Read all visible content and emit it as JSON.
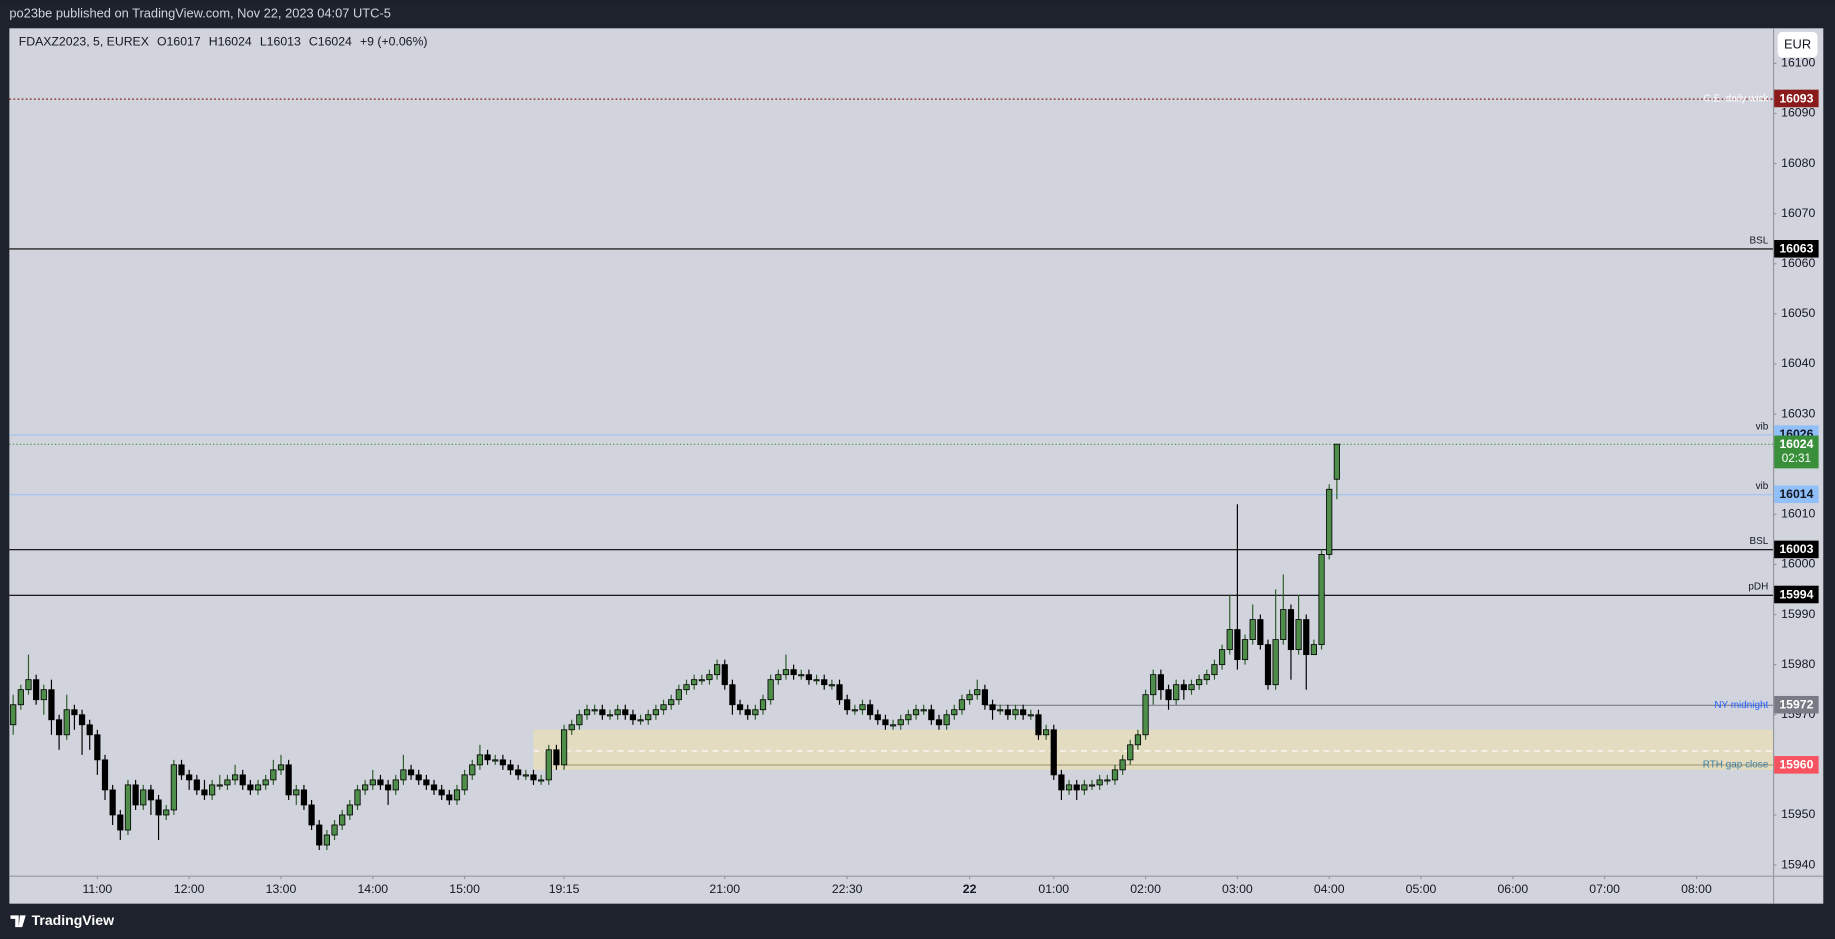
{
  "header": {
    "publisher": "po23be published on TradingView.com, Nov 22, 2023 04:07 UTC-5",
    "currency": "EUR"
  },
  "footer": {
    "brand": "TradingView"
  },
  "chart_data": {
    "type": "candlestick",
    "legend": {
      "symbol": "FDAXZ2023, 5, EUREX",
      "open": "O16017",
      "high": "H16024",
      "low": "L16013",
      "close": "C16024",
      "change": "+9 (+0.06%)"
    },
    "x": [
      0,
      1,
      2,
      3,
      4,
      5,
      6,
      7,
      8,
      9,
      10,
      11,
      12,
      13,
      14,
      15,
      16,
      17,
      18,
      19,
      20,
      21,
      22,
      23,
      24,
      25,
      26,
      27,
      28,
      29,
      30,
      31,
      32,
      33,
      34,
      35,
      36,
      37,
      38,
      39,
      40,
      41,
      42,
      43,
      44,
      45,
      46,
      47,
      48,
      49,
      50,
      51,
      52,
      53,
      54,
      55,
      56,
      57,
      58,
      59,
      60,
      61,
      62,
      63,
      64,
      65,
      66,
      67,
      68,
      69,
      70,
      71,
      72,
      73,
      74,
      75,
      76,
      77,
      78,
      79,
      80,
      81,
      82,
      83,
      84,
      85,
      86,
      87,
      88,
      89,
      90,
      91,
      92,
      93,
      94,
      95,
      96,
      97,
      98,
      99,
      100,
      101,
      102,
      103,
      104,
      105,
      106,
      107,
      108,
      109,
      110,
      111,
      112,
      113,
      114,
      115,
      116,
      117,
      118,
      119,
      120,
      121,
      122,
      123,
      124,
      125,
      126,
      127,
      128,
      129,
      130,
      131,
      132,
      133,
      134,
      135,
      136,
      137,
      138,
      139,
      140,
      141,
      142,
      143,
      144,
      145,
      146,
      147,
      148,
      149,
      150,
      151,
      152,
      153,
      154,
      155,
      156,
      157,
      158,
      159,
      160,
      161,
      162,
      163,
      164,
      165,
      166,
      167,
      168,
      169,
      170,
      171,
      172,
      173
    ],
    "open": [
      15968,
      15972,
      15975,
      15977,
      15973,
      15975,
      15969,
      15966,
      15971,
      15970,
      15968,
      15966,
      15961,
      15955,
      15950,
      15947,
      15956,
      15952,
      15955,
      15953,
      15950,
      15951,
      15960,
      15958,
      15957,
      15955,
      15954,
      15956,
      15956,
      15957,
      15958,
      15956,
      15955,
      15956,
      15957,
      15959,
      15960,
      15954,
      15955,
      15952,
      15948,
      15944,
      15946,
      15948,
      15950,
      15952,
      15955,
      15956,
      15957,
      15956,
      15955,
      15957,
      15959,
      15958,
      15957,
      15956,
      15955,
      15954,
      15953,
      15955,
      15958,
      15960,
      15962,
      15961,
      15961,
      15960,
      15959,
      15958,
      15958,
      15957,
      15957,
      15963,
      15960,
      15967,
      15968,
      15970,
      15971,
      15971,
      15970,
      15970,
      15971,
      15970,
      15969,
      15969,
      15970,
      15971,
      15972,
      15973,
      15975,
      15976,
      15977,
      15977,
      15978,
      15980,
      15976,
      15972,
      15971,
      15970,
      15971,
      15973,
      15977,
      15978,
      15979,
      15978,
      15978,
      15977,
      15977,
      15976,
      15976,
      15973,
      15971,
      15971,
      15972,
      15970,
      15969,
      15968,
      15968,
      15969,
      15970,
      15971,
      15971,
      15969,
      15968,
      15970,
      15971,
      15973,
      15974,
      15975,
      15972,
      15971,
      15971,
      15970,
      15971,
      15970,
      15970,
      15966,
      15967,
      15958,
      15955,
      15956,
      15955,
      15956,
      15956,
      15957,
      15957,
      15959,
      15961,
      15964,
      15966,
      15974,
      15978,
      15975,
      15973,
      15976,
      15975,
      15976,
      15977,
      15978,
      15980,
      15983,
      15987,
      15981,
      15985,
      15989,
      15984,
      15976,
      15985,
      15991,
      15983,
      15989,
      15982,
      15984,
      16002,
      16017
    ],
    "high": [
      15974,
      15976,
      15982,
      15978,
      15976,
      15977,
      15970,
      15974,
      15972,
      15971,
      15969,
      15967,
      15962,
      15956,
      15951,
      15957,
      15957,
      15956,
      15956,
      15954,
      15952,
      15961,
      15961,
      15959,
      15958,
      15957,
      15957,
      15958,
      15958,
      15960,
      15959,
      15957,
      15957,
      15958,
      15961,
      15962,
      15961,
      15956,
      15956,
      15953,
      15949,
      15947,
      15949,
      15951,
      15953,
      15956,
      15957,
      15959,
      15958,
      15957,
      15958,
      15962,
      15960,
      15959,
      15958,
      15957,
      15956,
      15955,
      15956,
      15959,
      15961,
      15964,
      15963,
      15962,
      15962,
      15961,
      15960,
      15959,
      15959,
      15958,
      15964,
      15964,
      15968,
      15969,
      15971,
      15972,
      15972,
      15972,
      15971,
      15972,
      15972,
      15971,
      15970,
      15971,
      15972,
      15973,
      15974,
      15976,
      15977,
      15978,
      15978,
      15979,
      15981,
      15981,
      15977,
      15973,
      15972,
      15972,
      15974,
      15978,
      15979,
      15982,
      15980,
      15979,
      15979,
      15978,
      15978,
      15977,
      15977,
      15974,
      15972,
      15973,
      15973,
      15971,
      15970,
      15969,
      15970,
      15971,
      15972,
      15972,
      15972,
      15970,
      15971,
      15972,
      15974,
      15975,
      15977,
      15976,
      15973,
      15972,
      15972,
      15972,
      15972,
      15971,
      15971,
      15968,
      15968,
      15959,
      15957,
      15957,
      15957,
      15957,
      15958,
      15958,
      15960,
      15962,
      15965,
      15967,
      15975,
      15979,
      15979,
      15976,
      15977,
      15977,
      15977,
      15978,
      15979,
      15981,
      15984,
      15994,
      16012,
      15986,
      15992,
      15990,
      15985,
      15995,
      15998,
      15992,
      15994,
      15990,
      15985,
      16003,
      16016,
      16024
    ],
    "low": [
      15966,
      15971,
      15974,
      15972,
      15970,
      15966,
      15963,
      15965,
      15967,
      15962,
      15963,
      15958,
      15953,
      15948,
      15945,
      15946,
      15951,
      15951,
      15950,
      15945,
      15949,
      15950,
      15957,
      15955,
      15954,
      15953,
      15953,
      15955,
      15955,
      15956,
      15955,
      15954,
      15954,
      15955,
      15956,
      15958,
      15953,
      15952,
      15951,
      15947,
      15943,
      15943,
      15945,
      15947,
      15949,
      15951,
      15954,
      15955,
      15955,
      15952,
      15954,
      15956,
      15957,
      15956,
      15955,
      15954,
      15953,
      15952,
      15952,
      15954,
      15957,
      15959,
      15960,
      15960,
      15959,
      15958,
      15957,
      15957,
      15956,
      15956,
      15956,
      15959,
      15959,
      15966,
      15967,
      15969,
      15970,
      15969,
      15969,
      15969,
      15969,
      15968,
      15968,
      15968,
      15969,
      15970,
      15971,
      15972,
      15974,
      15975,
      15976,
      15976,
      15977,
      15975,
      15970,
      15970,
      15969,
      15969,
      15970,
      15972,
      15976,
      15977,
      15977,
      15977,
      15976,
      15976,
      15975,
      15975,
      15972,
      15970,
      15970,
      15970,
      15969,
      15968,
      15967,
      15967,
      15967,
      15968,
      15969,
      15970,
      15968,
      15967,
      15967,
      15969,
      15970,
      15972,
      15973,
      15971,
      15969,
      15970,
      15969,
      15969,
      15969,
      15969,
      15965,
      15965,
      15957,
      15953,
      15954,
      15953,
      15954,
      15955,
      15955,
      15956,
      15956,
      15958,
      15960,
      15963,
      15965,
      15972,
      15973,
      15971,
      15972,
      15973,
      15974,
      15975,
      15976,
      15977,
      15979,
      15982,
      15979,
      15980,
      15984,
      15983,
      15975,
      15975,
      15984,
      15977,
      15982,
      15975,
      15983,
      15983,
      16001,
      16013
    ],
    "close": [
      15972,
      15975,
      15977,
      15973,
      15975,
      15969,
      15966,
      15971,
      15970,
      15968,
      15966,
      15961,
      15955,
      15950,
      15947,
      15956,
      15952,
      15955,
      15953,
      15950,
      15951,
      15960,
      15958,
      15957,
      15955,
      15954,
      15956,
      15956,
      15957,
      15958,
      15956,
      15955,
      15956,
      15957,
      15959,
      15960,
      15954,
      15955,
      15952,
      15948,
      15944,
      15946,
      15948,
      15950,
      15952,
      15955,
      15956,
      15957,
      15956,
      15955,
      15957,
      15959,
      15958,
      15957,
      15956,
      15955,
      15954,
      15953,
      15955,
      15958,
      15960,
      15962,
      15961,
      15961,
      15960,
      15959,
      15958,
      15958,
      15957,
      15957,
      15963,
      15960,
      15967,
      15968,
      15970,
      15971,
      15971,
      15970,
      15970,
      15971,
      15970,
      15969,
      15969,
      15970,
      15971,
      15972,
      15973,
      15975,
      15976,
      15977,
      15977,
      15978,
      15980,
      15976,
      15972,
      15971,
      15970,
      15971,
      15973,
      15977,
      15978,
      15979,
      15978,
      15978,
      15977,
      15977,
      15976,
      15976,
      15973,
      15971,
      15971,
      15972,
      15970,
      15969,
      15968,
      15968,
      15969,
      15970,
      15971,
      15971,
      15969,
      15968,
      15970,
      15971,
      15973,
      15974,
      15975,
      15972,
      15971,
      15971,
      15970,
      15971,
      15970,
      15970,
      15966,
      15967,
      15958,
      15955,
      15956,
      15955,
      15956,
      15956,
      15957,
      15957,
      15959,
      15961,
      15964,
      15966,
      15974,
      15978,
      15975,
      15973,
      15976,
      15975,
      15976,
      15977,
      15978,
      15980,
      15983,
      15987,
      15981,
      15985,
      15989,
      15984,
      15976,
      15985,
      15991,
      15983,
      15989,
      15982,
      15984,
      16002,
      16015,
      16024
    ],
    "up_color": "#4f8d4b",
    "down_color": "#000000",
    "border_color": "#000000",
    "xlim": [
      -0.5,
      230
    ],
    "xticks": [
      {
        "value": 11,
        "label": "11:00"
      },
      {
        "value": 23,
        "label": "12:00"
      },
      {
        "value": 35,
        "label": "13:00"
      },
      {
        "value": 47,
        "label": "14:00"
      },
      {
        "value": 59,
        "label": "15:00"
      },
      {
        "value": 72,
        "label": "19:15"
      },
      {
        "value": 93,
        "label": "21:00"
      },
      {
        "value": 109,
        "label": "22:30"
      },
      {
        "value": 125,
        "label": "22"
      },
      {
        "value": 136,
        "label": "01:00"
      },
      {
        "value": 148,
        "label": "02:00"
      },
      {
        "value": 160,
        "label": "03:00"
      },
      {
        "value": 172,
        "label": "04:00"
      },
      {
        "value": 184,
        "label": "05:00"
      },
      {
        "value": 196,
        "label": "06:00"
      },
      {
        "value": 208,
        "label": "07:00"
      },
      {
        "value": 220,
        "label": "08:00"
      }
    ],
    "ylim": [
      15937.9,
      16107.0
    ],
    "yticks": [
      15940,
      15950,
      15970,
      15980,
      15990,
      16000,
      16010,
      16030,
      16040,
      16050,
      16060,
      16070,
      16080,
      16090,
      16100
    ],
    "grid": false,
    "zone": {
      "from": 68,
      "low": 15959,
      "high": 15967,
      "color": "#e3dcc0"
    },
    "levels": [
      {
        "value": 16093,
        "label": "C.E. daily wick",
        "color": "#8b1a1a",
        "style": "dotted",
        "label_color": "#ffffff",
        "label_position": "on",
        "tag_color": "#8b1a1a",
        "tag_text_color": "#ffffff"
      },
      {
        "value": 16063,
        "label": "BSL",
        "color": "#000000",
        "style": "solid",
        "label_color": "#131722",
        "label_position": "above",
        "tag_color": "#000000",
        "tag_text_color": "#ffffff"
      },
      {
        "value": 16026,
        "label": "vib",
        "color": "#9cc3f5",
        "style": "solid",
        "label_color": "#131722",
        "label_position": "above",
        "tag_color": "#90bff9",
        "tag_text_color": "#131722"
      },
      {
        "value": 16014,
        "label": "vib",
        "color": "#9cc3f5",
        "style": "solid",
        "label_color": "#131722",
        "label_position": "above",
        "tag_color": "#90bff9",
        "tag_text_color": "#131722"
      },
      {
        "value": 16003,
        "label": "BSL",
        "color": "#000000",
        "style": "solid",
        "label_color": "#131722",
        "label_position": "above",
        "tag_color": "#000000",
        "tag_text_color": "#ffffff"
      },
      {
        "value": 15994,
        "label": "pDH",
        "color": "#000000",
        "style": "solid",
        "label_color": "#131722",
        "label_position": "above",
        "tag_color": "#000000",
        "tag_text_color": "#ffffff"
      },
      {
        "value": 15972,
        "label": "NY midnight",
        "color": "#7b7e88",
        "style": "solid",
        "start": 127,
        "label_color": "#2962ff",
        "label_position": "on",
        "tag_color": "#787b86",
        "tag_text_color": "#ffffff"
      },
      {
        "value": 15963,
        "color": "#ffffff",
        "style": "dashed",
        "start": 68
      },
      {
        "value": 15960,
        "label": "RTH gap close",
        "color": "#b0a27a",
        "style": "solid",
        "start": 72,
        "label_color": "#3f7fa6",
        "label_position": "on",
        "tag_color": "#f7525f",
        "tag_text_color": "#ffffff"
      }
    ],
    "last_price": {
      "value": 16024,
      "countdown": "02:31",
      "color": "#3a8f3a"
    }
  }
}
